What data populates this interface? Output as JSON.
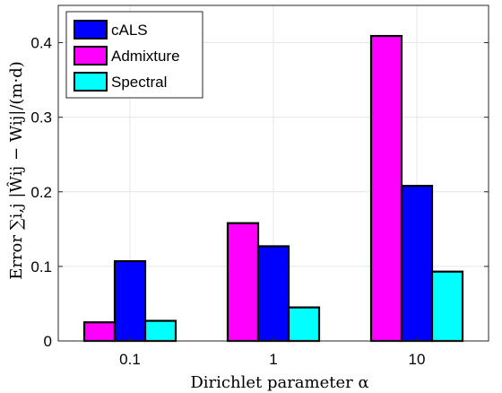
{
  "chart_data": {
    "type": "bar",
    "categories": [
      "0.1",
      "1",
      "10"
    ],
    "series": [
      {
        "name": "cALS",
        "values": [
          0.107,
          0.127,
          0.208
        ],
        "color": "#0000ff"
      },
      {
        "name": "Admixture",
        "values": [
          0.025,
          0.158,
          0.409
        ],
        "color": "#ff00ff"
      },
      {
        "name": "Spectral",
        "values": [
          0.027,
          0.045,
          0.093
        ],
        "color": "#00ffff"
      }
    ],
    "bar_order": [
      "Admixture",
      "cALS",
      "Spectral"
    ],
    "xlabel": "Dirichlet parameter α",
    "ylabel": "Error ∑i,j |Ŵij − Wij|/(m·d)",
    "ylim": [
      0,
      0.45
    ],
    "yticks": [
      0,
      0.1,
      0.2,
      0.3,
      0.4
    ],
    "ytick_labels": [
      "0",
      "0.1",
      "0.2",
      "0.3",
      "0.4"
    ],
    "grid": true,
    "legend_position": "top-left"
  }
}
